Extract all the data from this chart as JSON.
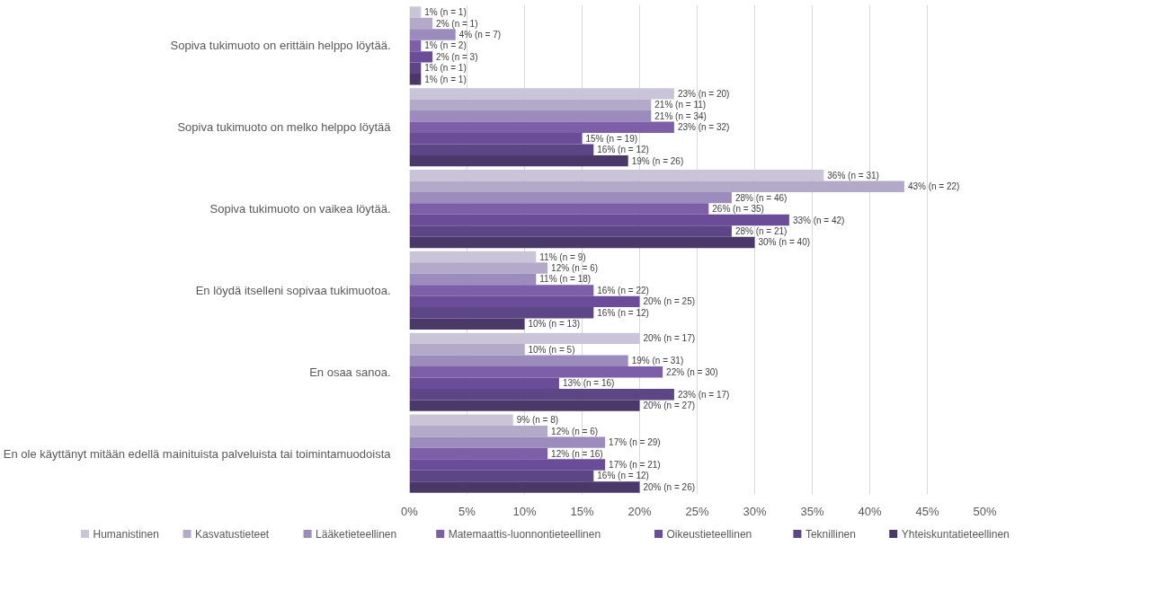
{
  "chart_data": {
    "type": "bar",
    "orientation": "horizontal",
    "categories": [
      "Sopiva tukimuoto on erittäin helppo löytää.",
      "Sopiva tukimuoto on melko helppo löytää",
      "Sopiva tukimuoto on vaikea löytää.",
      "En löydä itselleni sopivaa tukimuotoa.",
      "En osaa sanoa.",
      "En ole käyttänyt mitään edellä mainituista palveluista tai toimintamuodoista"
    ],
    "series": [
      {
        "name": "Humanistinen",
        "color": "#c9c4d8",
        "values": [
          1,
          23,
          36,
          11,
          20,
          9
        ],
        "value_labels": [
          "1% (n = 1)",
          "23% (n = 20)",
          "36% (n = 31)",
          "11% (n = 9)",
          "20% (n = 17)",
          "9% (n = 8)"
        ]
      },
      {
        "name": "Kasvatustieteet",
        "color": "#b3aac9",
        "values": [
          2,
          21,
          43,
          12,
          10,
          12
        ],
        "value_labels": [
          "2% (n = 1)",
          "21% (n = 11)",
          "43% (n = 22)",
          "12% (n = 6)",
          "10% (n = 5)",
          "12% (n = 6)"
        ]
      },
      {
        "name": "Lääketieteellinen",
        "color": "#9c8cbd",
        "values": [
          4,
          21,
          28,
          11,
          19,
          17
        ],
        "value_labels": [
          "4% (n = 7)",
          "21% (n = 34)",
          "28% (n = 46)",
          "11% (n = 18)",
          "19% (n = 31)",
          "17% (n = 29)"
        ]
      },
      {
        "name": "Matemaattis-luonnontieteellinen",
        "color": "#7d5fa9",
        "values": [
          1,
          23,
          26,
          16,
          22,
          12
        ],
        "value_labels": [
          "1% (n = 2)",
          "23% (n = 32)",
          "26% (n = 35)",
          "16% (n = 22)",
          "22% (n = 30)",
          "12% (n = 16)"
        ]
      },
      {
        "name": "Oikeustieteellinen",
        "color": "#6b4c99",
        "values": [
          2,
          15,
          33,
          20,
          13,
          17
        ],
        "value_labels": [
          "2% (n = 3)",
          "15% (n = 19)",
          "33% (n = 42)",
          "20% (n = 25)",
          "13% (n = 16)",
          "17% (n = 21)"
        ]
      },
      {
        "name": "Teknillinen",
        "color": "#5c4686",
        "values": [
          1,
          16,
          28,
          16,
          23,
          16
        ],
        "value_labels": [
          "1% (n = 1)",
          "16% (n = 12)",
          "28% (n = 21)",
          "16% (n = 12)",
          "23% (n = 17)",
          "16% (n = 12)"
        ]
      },
      {
        "name": "Yhteiskuntatieteellinen",
        "color": "#4a3868",
        "values": [
          1,
          19,
          30,
          10,
          20,
          20
        ],
        "value_labels": [
          "1% (n = 1)",
          "19% (n = 26)",
          "30% (n = 40)",
          "10% (n = 13)",
          "20% (n = 27)",
          "20% (n = 26)"
        ]
      }
    ],
    "xlim": [
      0,
      50
    ],
    "xticks": [
      {
        "value": 0,
        "label": "0%"
      },
      {
        "value": 5,
        "label": "5%"
      },
      {
        "value": 10,
        "label": "10%"
      },
      {
        "value": 15,
        "label": "15%"
      },
      {
        "value": 20,
        "label": "20%"
      },
      {
        "value": 25,
        "label": "25%"
      },
      {
        "value": 30,
        "label": "30%"
      },
      {
        "value": 35,
        "label": "35%"
      },
      {
        "value": 40,
        "label": "40%"
      },
      {
        "value": 45,
        "label": "45%"
      },
      {
        "value": 50,
        "label": "50%"
      }
    ],
    "grid": "x",
    "legend": "bottom"
  }
}
